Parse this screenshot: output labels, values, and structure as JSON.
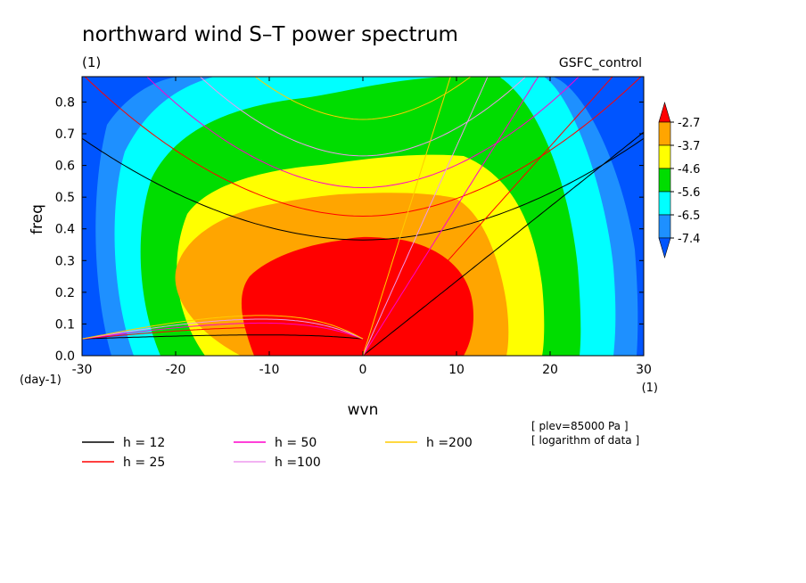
{
  "chart_data": {
    "type": "heatmap",
    "title": "northward wind S–T power spectrum",
    "title_units": "(1)",
    "run_label": "GSFC_control",
    "xlabel": "wvn",
    "x_units": "(1)",
    "ylabel": "freq",
    "y_units": "(day-1)",
    "xlim": [
      -30,
      30
    ],
    "ylim": [
      0,
      0.88
    ],
    "x_ticks": [
      -30,
      -20,
      -10,
      0,
      10,
      20,
      30
    ],
    "y_ticks": [
      0.0,
      0.1,
      0.2,
      0.3,
      0.4,
      0.5,
      0.6,
      0.7,
      0.8
    ],
    "x_tick_labels": [
      "-30",
      "-20",
      "-10",
      "0",
      "10",
      "20",
      "30"
    ],
    "y_tick_labels": [
      "0.0",
      "0.1",
      "0.2",
      "0.3",
      "0.4",
      "0.5",
      "0.6",
      "0.7",
      "0.8"
    ],
    "colorbar": {
      "levels": [
        "-2.7",
        "-3.7",
        "-4.6",
        "-5.6",
        "-6.5",
        "-7.4"
      ],
      "colors": [
        "#ff0000",
        "#ffa500",
        "#ffff00",
        "#00dd00",
        "#00ffff",
        "#1e90ff",
        "#0055ff"
      ]
    },
    "contour_bands": [
      {
        "color": "#0055ff"
      },
      {
        "color": "#1e90ff"
      },
      {
        "color": "#00ffff"
      },
      {
        "color": "#00dd00"
      },
      {
        "color": "#ffff00"
      },
      {
        "color": "#ffa500"
      },
      {
        "color": "#ff0000"
      }
    ],
    "dispersion_curves": [
      {
        "name": "h = 12",
        "h": 12,
        "color": "#000000"
      },
      {
        "name": "h = 25",
        "h": 25,
        "color": "#ff0000"
      },
      {
        "name": "h = 50",
        "h": 50,
        "color": "#ff00cc"
      },
      {
        "name": "h =100",
        "h": 100,
        "color": "#ee99ee"
      },
      {
        "name": "h =200",
        "h": 200,
        "color": "#ffcc00"
      }
    ],
    "notes": [
      "[ plev=85000 Pa ]",
      "[ logarithm of data ]"
    ]
  }
}
